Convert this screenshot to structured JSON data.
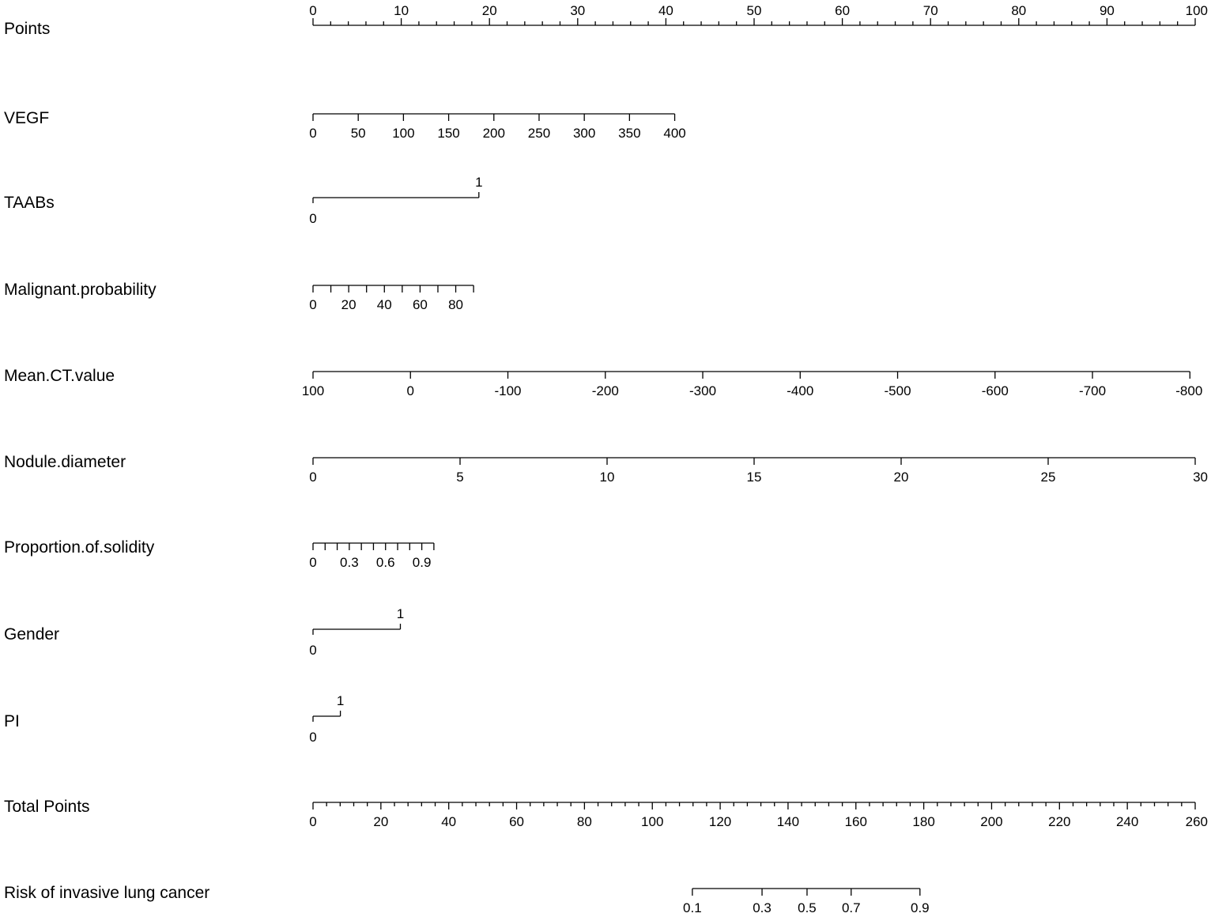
{
  "chart_data": {
    "type": "nomogram",
    "title": "",
    "points_range": [
      0,
      100
    ],
    "rows": [
      {
        "label": "Points",
        "kind": "scale",
        "ticks_above": true,
        "start": 0,
        "end": 100,
        "major": [
          0,
          10,
          20,
          30,
          40,
          50,
          60,
          70,
          80,
          90,
          100
        ],
        "labels": [
          "0",
          "10",
          "20",
          "30",
          "40",
          "50",
          "60",
          "70",
          "80",
          "90",
          "100"
        ],
        "minor_step": 2
      },
      {
        "label": "VEGF",
        "kind": "scale",
        "ticks_above": false,
        "start": 0,
        "end": 400,
        "points_at_start": 0,
        "points_at_end": 41,
        "major": [
          0,
          50,
          100,
          150,
          200,
          250,
          300,
          350,
          400
        ],
        "labels": [
          "0",
          "50",
          "100",
          "150",
          "200",
          "250",
          "300",
          "350",
          "400"
        ]
      },
      {
        "label": "TAABs",
        "kind": "binary",
        "levels": [
          {
            "value": "0",
            "points": 0
          },
          {
            "value": "1",
            "points": 18.8
          }
        ]
      },
      {
        "label": "Malignant.probability",
        "kind": "scale",
        "ticks_above": false,
        "start": 0,
        "end": 90,
        "points_at_start": 0,
        "points_at_end": 18.2,
        "major": [
          0,
          10,
          20,
          30,
          40,
          50,
          60,
          70,
          80,
          90
        ],
        "labels": [
          "0",
          "",
          "20",
          "",
          "40",
          "",
          "60",
          "",
          "80",
          ""
        ]
      },
      {
        "label": "Mean.CT.value",
        "kind": "scale",
        "ticks_above": false,
        "start": 100,
        "end": -800,
        "points_at_start": 0,
        "points_at_end": 99.4,
        "major": [
          100,
          0,
          -100,
          -200,
          -300,
          -400,
          -500,
          -600,
          -700,
          -800
        ],
        "labels": [
          "100",
          "0",
          "-100",
          "-200",
          "-300",
          "-400",
          "-500",
          "-600",
          "-700",
          "-800"
        ]
      },
      {
        "label": "Nodule.diameter",
        "kind": "scale",
        "ticks_above": false,
        "start": 0,
        "end": 30,
        "points_at_start": 0,
        "points_at_end": 100,
        "major": [
          0,
          5,
          10,
          15,
          20,
          25,
          30
        ],
        "labels": [
          "0",
          "5",
          "10",
          "15",
          "20",
          "25",
          "30"
        ]
      },
      {
        "label": "Proportion.of.solidity",
        "kind": "scale",
        "ticks_above": false,
        "start": 0,
        "end": 1,
        "points_at_start": 0,
        "points_at_end": 13.7,
        "major": [
          0,
          0.1,
          0.2,
          0.3,
          0.4,
          0.5,
          0.6,
          0.7,
          0.8,
          0.9,
          1
        ],
        "labels": [
          "0",
          "",
          "",
          "0.3",
          "",
          "",
          "0.6",
          "",
          "",
          "0.9",
          ""
        ]
      },
      {
        "label": "Gender",
        "kind": "binary",
        "levels": [
          {
            "value": "0",
            "points": 0
          },
          {
            "value": "1",
            "points": 9.9
          }
        ]
      },
      {
        "label": "PI",
        "kind": "binary",
        "levels": [
          {
            "value": "0",
            "points": 0
          },
          {
            "value": "1",
            "points": 3.1
          }
        ]
      },
      {
        "label": "Total Points",
        "kind": "scale",
        "ticks_above": false,
        "start": 0,
        "end": 260,
        "points_at_start": 0,
        "points_at_end": 100,
        "major": [
          0,
          20,
          40,
          60,
          80,
          100,
          120,
          140,
          160,
          180,
          200,
          220,
          240,
          260
        ],
        "labels": [
          "0",
          "20",
          "40",
          "60",
          "80",
          "100",
          "120",
          "140",
          "160",
          "180",
          "200",
          "220",
          "240",
          "260"
        ],
        "minor_step": 4
      },
      {
        "label": "Risk of invasive lung cancer",
        "kind": "scale",
        "ticks_above": false,
        "start": 0.1,
        "end": 0.9,
        "points_at_start": 43.0,
        "points_at_end": 68.8,
        "major": [
          0.1,
          0.3,
          0.5,
          0.7,
          0.9
        ],
        "major_points": [
          43.0,
          50.9,
          56.0,
          61.0,
          68.8
        ],
        "labels": [
          "0.1",
          "0.3",
          "0.5",
          "0.7",
          "0.9"
        ]
      }
    ]
  }
}
